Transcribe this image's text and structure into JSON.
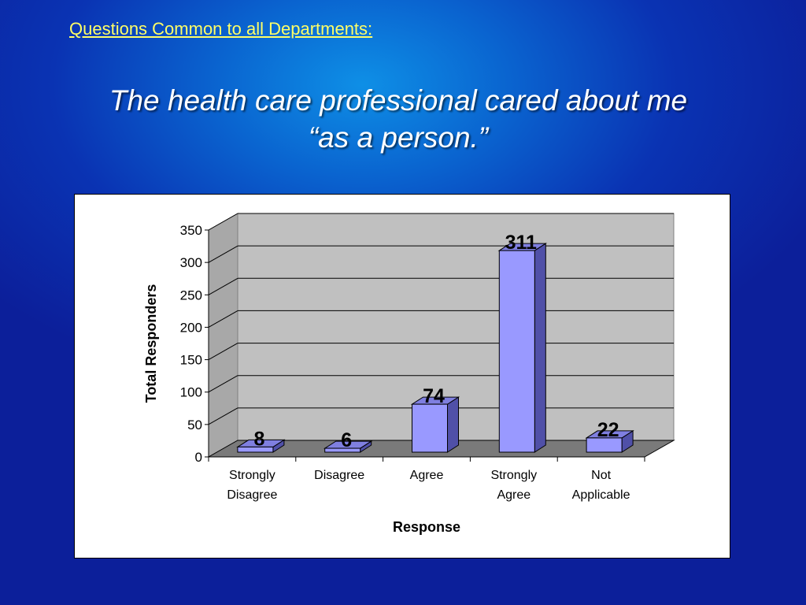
{
  "header": {
    "link_text": "Questions Common to all Departments:"
  },
  "slide": {
    "title_line1": "The health care professional cared about me",
    "title_line2": "“as a person.”"
  },
  "chart_data": {
    "type": "bar",
    "categories": [
      [
        "Strongly",
        "Disagree"
      ],
      [
        "Disagree"
      ],
      [
        "Agree"
      ],
      [
        "Strongly",
        "Agree"
      ],
      [
        "Not",
        "Applicable"
      ]
    ],
    "values": [
      8,
      6,
      74,
      311,
      22
    ],
    "data_labels": [
      "8",
      "6",
      "74",
      "311",
      "22"
    ],
    "xlabel": "Response",
    "ylabel": "Total Responders",
    "ylim": [
      0,
      350
    ],
    "yticks": [
      0,
      50,
      100,
      150,
      200,
      250,
      300,
      350
    ],
    "grid": true,
    "style": "3d",
    "colors": {
      "bar_front": "#9999ff",
      "bar_top": "#7f7fe0",
      "bar_side": "#5050a8",
      "back_wall": "#c0c0c0",
      "side_wall": "#a8a8a8",
      "floor": "#7a7a7a"
    }
  }
}
